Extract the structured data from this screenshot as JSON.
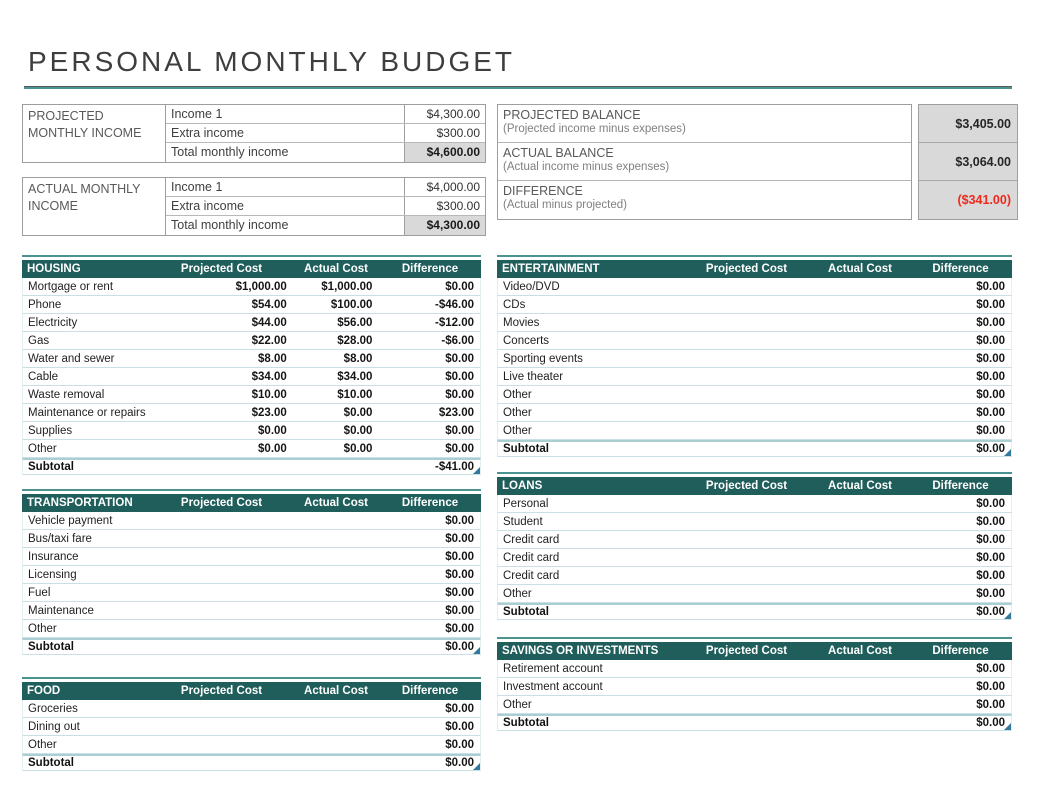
{
  "title": "PERSONAL MONTHLY BUDGET",
  "income": {
    "projected": {
      "label": "PROJECTED MONTHLY INCOME",
      "rows": [
        {
          "label": "Income 1",
          "value": "$4,300.00"
        },
        {
          "label": "Extra income",
          "value": "$300.00"
        },
        {
          "label": "Total monthly income",
          "value": "$4,600.00"
        }
      ]
    },
    "actual": {
      "label": "ACTUAL MONTHLY INCOME",
      "rows": [
        {
          "label": "Income 1",
          "value": "$4,000.00"
        },
        {
          "label": "Extra income",
          "value": "$300.00"
        },
        {
          "label": "Total monthly income",
          "value": "$4,300.00"
        }
      ]
    }
  },
  "balance": {
    "rows": [
      {
        "label": "PROJECTED BALANCE",
        "sublabel": "(Projected income minus expenses)",
        "value": "$3,405.00",
        "negative": false
      },
      {
        "label": "ACTUAL BALANCE",
        "sublabel": "(Actual income minus expenses)",
        "value": "$3,064.00",
        "negative": false
      },
      {
        "label": "DIFFERENCE",
        "sublabel": "(Actual minus projected)",
        "value": "($341.00)",
        "negative": true
      }
    ]
  },
  "columns": {
    "projected": "Projected Cost",
    "actual": "Actual Cost",
    "difference": "Difference"
  },
  "subtotal_label": "Subtotal",
  "expense_tables": [
    {
      "name": "HOUSING",
      "side": "left",
      "rows": [
        [
          "Mortgage or rent",
          "$1,000.00",
          "$1,000.00",
          "$0.00"
        ],
        [
          "Phone",
          "$54.00",
          "$100.00",
          "-$46.00"
        ],
        [
          "Electricity",
          "$44.00",
          "$56.00",
          "-$12.00"
        ],
        [
          "Gas",
          "$22.00",
          "$28.00",
          "-$6.00"
        ],
        [
          "Water and sewer",
          "$8.00",
          "$8.00",
          "$0.00"
        ],
        [
          "Cable",
          "$34.00",
          "$34.00",
          "$0.00"
        ],
        [
          "Waste removal",
          "$10.00",
          "$10.00",
          "$0.00"
        ],
        [
          "Maintenance or repairs",
          "$23.00",
          "$0.00",
          "$23.00"
        ],
        [
          "Supplies",
          "$0.00",
          "$0.00",
          "$0.00"
        ],
        [
          "Other",
          "$0.00",
          "$0.00",
          "$0.00"
        ]
      ],
      "subtotal": {
        "projected": "",
        "actual": "",
        "difference": "-$41.00"
      }
    },
    {
      "name": "ENTERTAINMENT",
      "side": "right",
      "rows": [
        [
          "Video/DVD",
          "",
          "",
          "$0.00"
        ],
        [
          "CDs",
          "",
          "",
          "$0.00"
        ],
        [
          "Movies",
          "",
          "",
          "$0.00"
        ],
        [
          "Concerts",
          "",
          "",
          "$0.00"
        ],
        [
          "Sporting events",
          "",
          "",
          "$0.00"
        ],
        [
          "Live theater",
          "",
          "",
          "$0.00"
        ],
        [
          "Other",
          "",
          "",
          "$0.00"
        ],
        [
          "Other",
          "",
          "",
          "$0.00"
        ],
        [
          "Other",
          "",
          "",
          "$0.00"
        ]
      ],
      "subtotal": {
        "projected": "",
        "actual": "",
        "difference": "$0.00"
      }
    },
    {
      "name": "TRANSPORTATION",
      "side": "left",
      "rows": [
        [
          "Vehicle payment",
          "",
          "",
          "$0.00"
        ],
        [
          "Bus/taxi fare",
          "",
          "",
          "$0.00"
        ],
        [
          "Insurance",
          "",
          "",
          "$0.00"
        ],
        [
          "Licensing",
          "",
          "",
          "$0.00"
        ],
        [
          "Fuel",
          "",
          "",
          "$0.00"
        ],
        [
          "Maintenance",
          "",
          "",
          "$0.00"
        ],
        [
          "Other",
          "",
          "",
          "$0.00"
        ]
      ],
      "subtotal": {
        "projected": "",
        "actual": "",
        "difference": "$0.00"
      }
    },
    {
      "name": "LOANS",
      "side": "right",
      "rows": [
        [
          "Personal",
          "",
          "",
          "$0.00"
        ],
        [
          "Student",
          "",
          "",
          "$0.00"
        ],
        [
          "Credit card",
          "",
          "",
          "$0.00"
        ],
        [
          "Credit card",
          "",
          "",
          "$0.00"
        ],
        [
          "Credit card",
          "",
          "",
          "$0.00"
        ],
        [
          "Other",
          "",
          "",
          "$0.00"
        ]
      ],
      "subtotal": {
        "projected": "",
        "actual": "",
        "difference": "$0.00"
      }
    },
    {
      "name": "FOOD",
      "side": "left",
      "rows": [
        [
          "Groceries",
          "",
          "",
          "$0.00"
        ],
        [
          "Dining out",
          "",
          "",
          "$0.00"
        ],
        [
          "Other",
          "",
          "",
          "$0.00"
        ]
      ],
      "subtotal": {
        "projected": "",
        "actual": "",
        "difference": "$0.00"
      }
    },
    {
      "name": "SAVINGS OR INVESTMENTS",
      "side": "right",
      "rows": [
        [
          "Retirement account",
          "",
          "",
          "$0.00"
        ],
        [
          "Investment account",
          "",
          "",
          "$0.00"
        ],
        [
          "Other",
          "",
          "",
          "$0.00"
        ]
      ],
      "subtotal": {
        "projected": "",
        "actual": "",
        "difference": "$0.00"
      }
    }
  ],
  "colors": {
    "header_teal": "#205e5b",
    "accent_teal": "#4a9391",
    "row_line": "#c9dfe3",
    "subtotal_line": "#aacfd3",
    "negative_red": "#ee2a1e",
    "total_fill": "#d9d9d9",
    "title_color": "#3e3e3e",
    "corner_handle": "#33799b"
  }
}
